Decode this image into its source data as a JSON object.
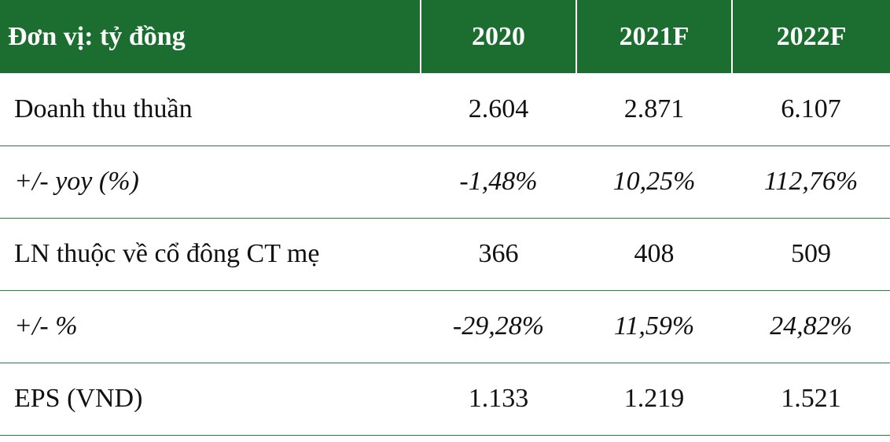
{
  "header": {
    "unit_label": "Đơn vị: tỷ đồng",
    "years": [
      "2020",
      "2021F",
      "2022F"
    ]
  },
  "rows": [
    {
      "label": "Doanh thu thuần",
      "values": [
        "2.604",
        "2.871",
        "6.107"
      ],
      "italic": false
    },
    {
      "label": "+/-  yoy (%)",
      "values": [
        "-1,48%",
        "10,25%",
        "112,76%"
      ],
      "italic": true
    },
    {
      "label": "LN thuộc về cổ đông CT mẹ",
      "values": [
        "366",
        "408",
        "509"
      ],
      "italic": false
    },
    {
      "label": "+/- %",
      "values": [
        "-29,28%",
        "11,59%",
        "24,82%"
      ],
      "italic": true
    },
    {
      "label": "EPS (VND)",
      "values": [
        "1.133",
        "1.219",
        "1.521"
      ],
      "italic": false
    }
  ],
  "colors": {
    "header_bg": "#1b6e2f",
    "header_text": "#ffffff",
    "row_divider": "#2e7d45"
  }
}
